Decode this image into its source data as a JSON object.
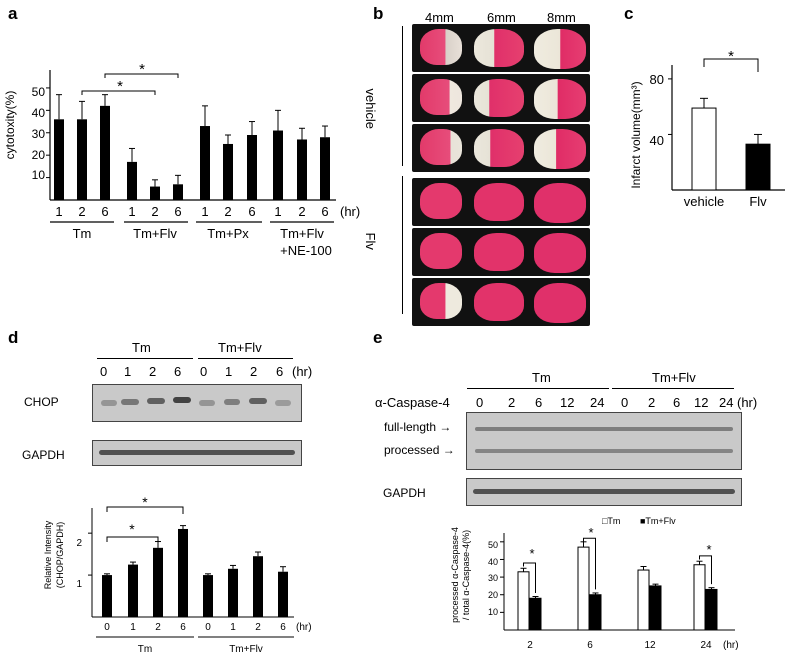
{
  "panels": {
    "a": "a",
    "b": "b",
    "c": "c",
    "d": "d",
    "e": "e"
  },
  "panel_a": {
    "ylabel": "cytotoxity(%)",
    "yticks": [
      "10",
      "20",
      "30",
      "40",
      "50"
    ],
    "time_labels": [
      "1",
      "2",
      "6",
      "1",
      "2",
      "6",
      "1",
      "2",
      "6",
      "1",
      "2",
      "6"
    ],
    "unit": "(hr)",
    "groups": [
      "Tm",
      "Tm+Flv",
      "Tm+Px",
      "Tm+Flv",
      "+NE-100"
    ],
    "star": "*"
  },
  "panel_b": {
    "columns": [
      "4mm",
      "6mm",
      "8mm"
    ],
    "group_vehicle": "vehicle",
    "group_flv": "Flv"
  },
  "panel_c": {
    "ylabel": "Infarct volume(mm³)",
    "yticks": [
      "40",
      "80"
    ],
    "categories": [
      "vehicle",
      "Flv"
    ],
    "star": "*"
  },
  "panel_d": {
    "group_tm": "Tm",
    "group_tmflv": "Tm+Flv",
    "time_labels": [
      "0",
      "1",
      "2",
      "6",
      "0",
      "1",
      "2",
      "6"
    ],
    "unit": "(hr)",
    "row_chop": "CHOP",
    "row_gapdh": "GAPDH",
    "ylabel1": "Relative Intensity",
    "ylabel2": "(CHOP/GAPDH)",
    "yticks": [
      "1",
      "2"
    ],
    "group_tm_small": "Tm",
    "group_tmflv_small": "Tm+Flv",
    "star": "*"
  },
  "panel_e": {
    "group_tm": "Tm",
    "group_tmflv": "Tm+Flv",
    "antibody": "α-Caspase-4",
    "time_labels": [
      "0",
      "2",
      "6",
      "12",
      "24",
      "0",
      "2",
      "6",
      "12",
      "24"
    ],
    "unit": "(hr)",
    "full_length": "full-length →",
    "processed": "processed →",
    "row_gapdh": "GAPDH",
    "ylabel1": "processed α-Caspase-4",
    "ylabel2": "/ total α-Caspase-4(%)",
    "yticks": [
      "10",
      "20",
      "30",
      "40",
      "50"
    ],
    "legend_tm": "□Tm",
    "legend_tmflv": "■Tm+Flv",
    "star": "*"
  },
  "chart_data": [
    {
      "type": "bar",
      "panel": "a",
      "ylabel": "cytotoxity(%)",
      "ylim": [
        0,
        58
      ],
      "categories": [
        "1",
        "2",
        "6",
        "1",
        "2",
        "6",
        "1",
        "2",
        "6",
        "1",
        "2",
        "6"
      ],
      "values": [
        36,
        36,
        42,
        17,
        6,
        7,
        33,
        25,
        29,
        31,
        27,
        28
      ],
      "errors": [
        11,
        8,
        5,
        6,
        3,
        4,
        9,
        4,
        6,
        9,
        5,
        5
      ]
    },
    {
      "type": "bar",
      "panel": "c",
      "ylabel": "Infarct volume(mm³)",
      "ylim": [
        0,
        90
      ],
      "categories": [
        "vehicle",
        "Flv"
      ],
      "values": [
        59,
        33
      ],
      "errors": [
        7,
        7
      ]
    },
    {
      "type": "bar",
      "panel": "d",
      "ylabel": "Relative Intensity (CHOP/GAPDH)",
      "ylim": [
        0,
        2.6
      ],
      "categories": [
        "0",
        "1",
        "2",
        "6",
        "0",
        "1",
        "2",
        "6"
      ],
      "values": [
        1.0,
        1.25,
        1.65,
        2.1,
        1.0,
        1.15,
        1.45,
        1.08
      ],
      "errors": [
        0.03,
        0.06,
        0.15,
        0.08,
        0.03,
        0.08,
        0.1,
        0.12
      ]
    },
    {
      "type": "bar",
      "panel": "e",
      "ylabel": "processed α-Caspase-4 / total α-Caspase-4(%)",
      "ylim": [
        0,
        55
      ],
      "categories": [
        "2",
        "6",
        "12",
        "24"
      ],
      "series": [
        {
          "name": "Tm",
          "values": [
            33,
            47,
            34,
            37
          ],
          "errors": [
            2,
            3,
            2,
            2
          ]
        },
        {
          "name": "Tm+Flv",
          "values": [
            18,
            20,
            25,
            23
          ],
          "errors": [
            1,
            1,
            1,
            1
          ]
        }
      ]
    }
  ]
}
